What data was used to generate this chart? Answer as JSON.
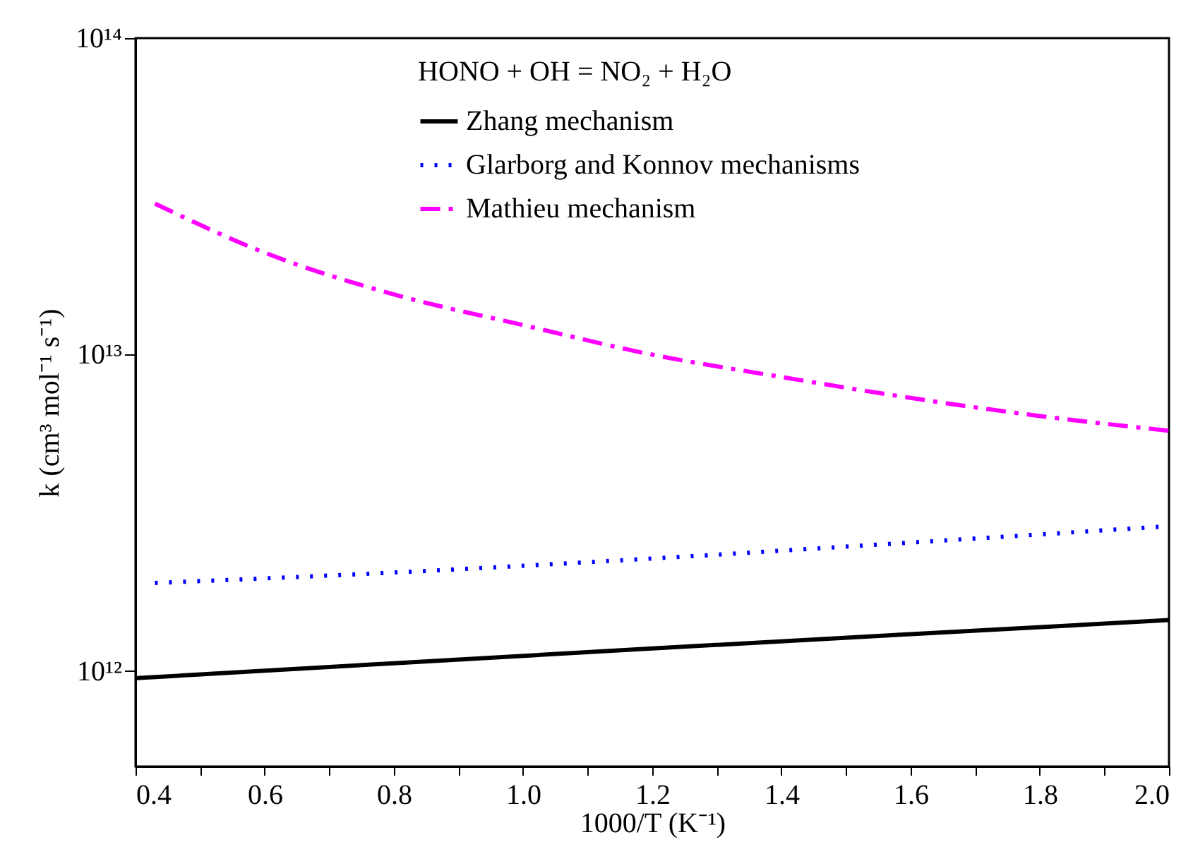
{
  "chart_data": {
    "type": "line",
    "xlabel": "1000/T (K⁻¹)",
    "ylabel": "k (cm³ mol⁻¹ s⁻¹)",
    "legend_title": "HONO + OH = NO₂ + H₂O",
    "legend": "top",
    "log": "y",
    "grid": false,
    "xlim": [
      0.4,
      2.0
    ],
    "ylim": [
      500000000000.0,
      100000000000000.0
    ],
    "xticks": [
      0.4,
      {
        "value": 0.5,
        "label": null
      },
      0.6,
      {
        "value": 0.7,
        "label": null
      },
      0.8,
      {
        "value": 0.9,
        "label": null
      },
      {
        "value": 1,
        "label": "1.0"
      },
      {
        "value": 1.1,
        "label": null
      },
      1.2,
      {
        "value": 1.3,
        "label": null
      },
      1.4,
      {
        "value": 1.5,
        "label": null
      },
      1.6,
      {
        "value": 1.7,
        "label": null
      },
      1.8,
      {
        "value": 1.9,
        "label": null
      },
      {
        "value": 2,
        "label": "2.0"
      }
    ],
    "yticks": [
      {
        "value": 1000000000000.0,
        "label": "10¹²"
      },
      {
        "value": 10000000000000.0,
        "label": "10¹³"
      },
      {
        "value": 100000000000000.0,
        "label": "10¹⁴"
      }
    ],
    "series": [
      {
        "name": "Zhang mechanism",
        "color": "#000000",
        "line_style": "solid",
        "x": [
          0.4,
          0.8,
          1.2,
          1.6,
          2.0
        ],
        "values": [
          950000000000.0,
          1060000000000.0,
          1180000000000.0,
          1310000000000.0,
          1450000000000.0
        ]
      },
      {
        "name": "Glarborg and Konnov mechanisms",
        "color": "#0000ff",
        "line_style": "dotted",
        "x": [
          0.43,
          0.8,
          1.2,
          1.6,
          2.0
        ],
        "values": [
          1900000000000.0,
          2050000000000.0,
          2270000000000.0,
          2550000000000.0,
          2870000000000.0
        ]
      },
      {
        "name": "Mathieu mechanism",
        "color": "#ff00ff",
        "line_style": "dashdot",
        "x": [
          0.43,
          0.6,
          0.8,
          1.0,
          1.2,
          1.4,
          1.6,
          1.8,
          2.0
        ],
        "values": [
          30000000000000.0,
          21000000000000.0,
          15500000000000.0,
          12400000000000.0,
          10000000000000.0,
          8500000000000.0,
          7300000000000.0,
          6400000000000.0,
          5750000000000.0
        ]
      }
    ]
  }
}
